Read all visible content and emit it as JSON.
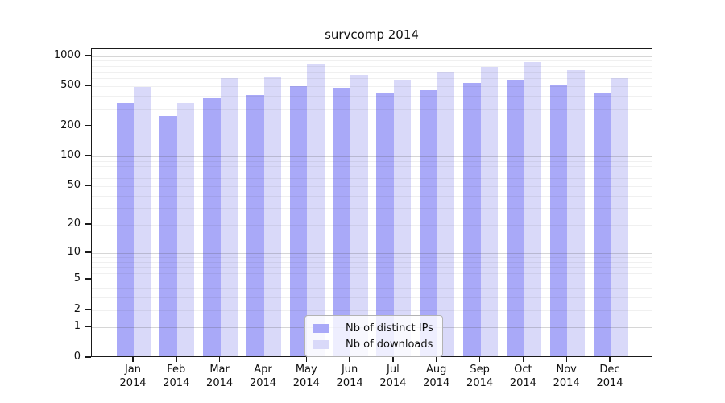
{
  "title": "survcomp 2014",
  "chart_data": {
    "type": "bar",
    "title": "survcomp 2014",
    "scale_y": "log1p",
    "grid": true,
    "categories": [
      "Jan",
      "Feb",
      "Mar",
      "Apr",
      "May",
      "Jun",
      "Jul",
      "Aug",
      "Sep",
      "Oct",
      "Nov",
      "Dec"
    ],
    "year_label": "2014",
    "series": [
      {
        "name": "Nb of distinct IPs",
        "color": "#a9a9f8",
        "values": [
          327,
          244,
          370,
          395,
          483,
          464,
          410,
          445,
          523,
          557,
          495,
          410
        ]
      },
      {
        "name": "Nb of downloads",
        "color": "#d9d9f9",
        "values": [
          472,
          331,
          580,
          598,
          810,
          630,
          556,
          671,
          755,
          842,
          695,
          578
        ]
      }
    ],
    "y_ticks": [
      1000,
      500,
      200,
      100,
      50,
      20,
      10,
      5,
      2,
      1,
      0
    ],
    "y_minor_gridlines": [
      2,
      3,
      4,
      5,
      6,
      7,
      8,
      9,
      20,
      30,
      40,
      50,
      60,
      70,
      80,
      90,
      200,
      300,
      400,
      500,
      600,
      700,
      800,
      900
    ],
    "y_major_gridlines": [
      1,
      10,
      100,
      1000
    ],
    "ylim": [
      0,
      1170
    ],
    "legend_position": "inside-bottom-center",
    "colors": {
      "spine": "#1a1a1a",
      "background": "#ffffff",
      "legend_border": "#b3b3b3"
    }
  }
}
